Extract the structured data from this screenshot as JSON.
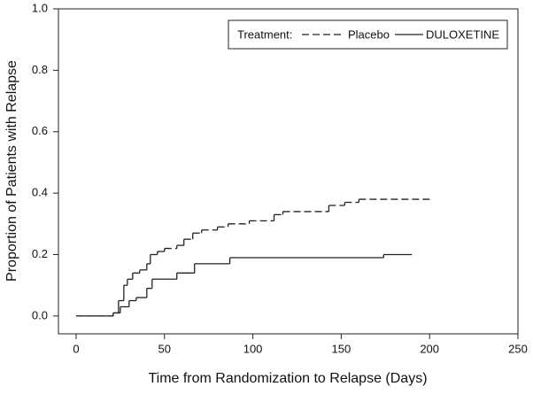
{
  "chart_data": {
    "type": "step",
    "xlabel": "Time from Randomization to Relapse (Days)",
    "ylabel": "Proportion of Patients with Relapse",
    "xlim": [
      -10,
      250
    ],
    "ylim": [
      -0.058,
      1.0
    ],
    "xticks": [
      0,
      50,
      100,
      150,
      200,
      250
    ],
    "yticks": [
      {
        "value": 0,
        "label": "0.0"
      },
      0.2,
      0.4,
      0.6,
      0.8,
      {
        "value": 1,
        "label": "1.0"
      }
    ],
    "legend_title": "Treatment:",
    "legend": "top-right",
    "series": [
      {
        "name": "Placebo",
        "color": "#222222",
        "linestyle": "dashed",
        "x": [
          0,
          21,
          24,
          27,
          29,
          32,
          36,
          40,
          42,
          46,
          50,
          57,
          61,
          66,
          71,
          80,
          86,
          98,
          112,
          117,
          143,
          152,
          160,
          202
        ],
        "values": [
          0,
          0.01,
          0.05,
          0.1,
          0.12,
          0.14,
          0.15,
          0.17,
          0.2,
          0.21,
          0.22,
          0.23,
          0.25,
          0.27,
          0.28,
          0.29,
          0.3,
          0.31,
          0.33,
          0.34,
          0.36,
          0.37,
          0.38,
          0.38
        ]
      },
      {
        "name": "DULOXETINE",
        "color": "#222222",
        "linestyle": "solid",
        "x": [
          0,
          21,
          25,
          30,
          34,
          40,
          43,
          57,
          67,
          87,
          174,
          190
        ],
        "values": [
          0,
          0.01,
          0.03,
          0.05,
          0.06,
          0.09,
          0.12,
          0.14,
          0.17,
          0.19,
          0.2,
          0.2
        ]
      }
    ]
  }
}
